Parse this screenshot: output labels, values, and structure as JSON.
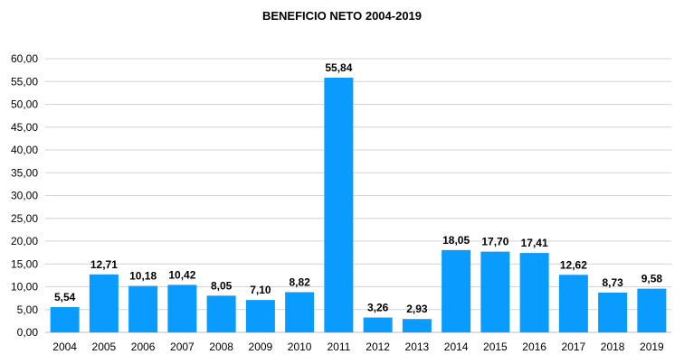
{
  "chart_data": {
    "type": "bar",
    "title": "BENEFICIO NETO 2004-2019",
    "xlabel": "",
    "ylabel": "",
    "categories": [
      "2004",
      "2005",
      "2006",
      "2007",
      "2008",
      "2009",
      "2010",
      "2011",
      "2012",
      "2013",
      "2014",
      "2015",
      "2016",
      "2017",
      "2018",
      "2019"
    ],
    "values": [
      5.54,
      12.71,
      10.18,
      10.42,
      8.05,
      7.1,
      8.82,
      55.84,
      3.26,
      2.93,
      18.05,
      17.7,
      17.41,
      12.62,
      8.73,
      9.58
    ],
    "value_labels": [
      "5,54",
      "12,71",
      "10,18",
      "10,42",
      "8,05",
      "7,10",
      "8,82",
      "55,84",
      "3,26",
      "2,93",
      "18,05",
      "17,70",
      "17,41",
      "12,62",
      "8,73",
      "9,58"
    ],
    "ylim": [
      0,
      60
    ],
    "yticks": [
      "0,00",
      "5,00",
      "10,00",
      "15,00",
      "20,00",
      "25,00",
      "30,00",
      "35,00",
      "40,00",
      "45,00",
      "50,00",
      "55,00",
      "60,00"
    ],
    "grid": true,
    "legend": "none",
    "bar_color": "#0a9bff"
  }
}
